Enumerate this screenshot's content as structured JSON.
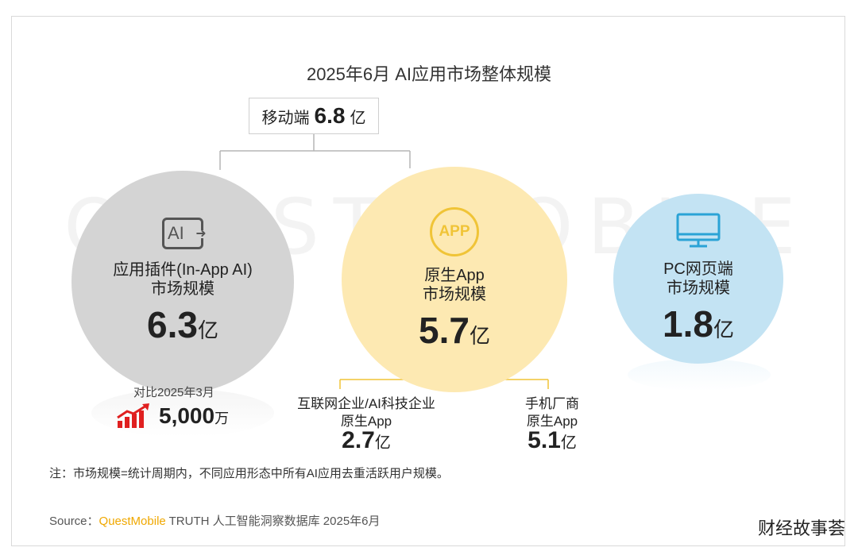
{
  "chart_data": {
    "type": "hierarchy",
    "title": "2025年6月 AI应用市场整体规模",
    "root": {
      "label": "移动端",
      "value": "6.8",
      "unit": "亿"
    },
    "nodes": [
      {
        "label_line1": "应用插件(In-App AI)",
        "label_line2": "市场规模",
        "value": "6.3",
        "unit": "亿",
        "icon": "ai-plugin-icon",
        "color": "#d4d4d4",
        "compare": {
          "label": "对比2025年3月",
          "value": "5,000",
          "unit": "万",
          "icon": "trend-up-icon"
        }
      },
      {
        "label_line1": "原生App",
        "label_line2": "市场规模",
        "value": "5.7",
        "unit": "亿",
        "icon": "app-icon",
        "icon_text": "APP",
        "color": "#fde9b2",
        "children": [
          {
            "label_line1": "互联网企业/AI科技企业",
            "label_line2": "原生App",
            "value": "2.7",
            "unit": "亿"
          },
          {
            "label_line1": "手机厂商",
            "label_line2": "原生App",
            "value": "5.1",
            "unit": "亿"
          }
        ]
      },
      {
        "label_line1": "PC网页端",
        "label_line2": "市场规模",
        "value": "1.8",
        "unit": "亿",
        "icon": "monitor-icon",
        "color": "#c3e3f3"
      }
    ],
    "note": "注：市场规模=统计周期内，不同应用形态中所有AI应用去重活跃用户规模。",
    "source": {
      "prefix": "Source：",
      "brand": "QuestMobile",
      "text": " TRUTH 人工智能洞察数据库 2025年6月"
    }
  },
  "watermark": "QUEST MOBILE",
  "corner_logo": "财经故事荟",
  "colors": {
    "accent_yellow": "#f0c437",
    "source_brand": "#f0a800",
    "trend_red": "#e02020"
  }
}
